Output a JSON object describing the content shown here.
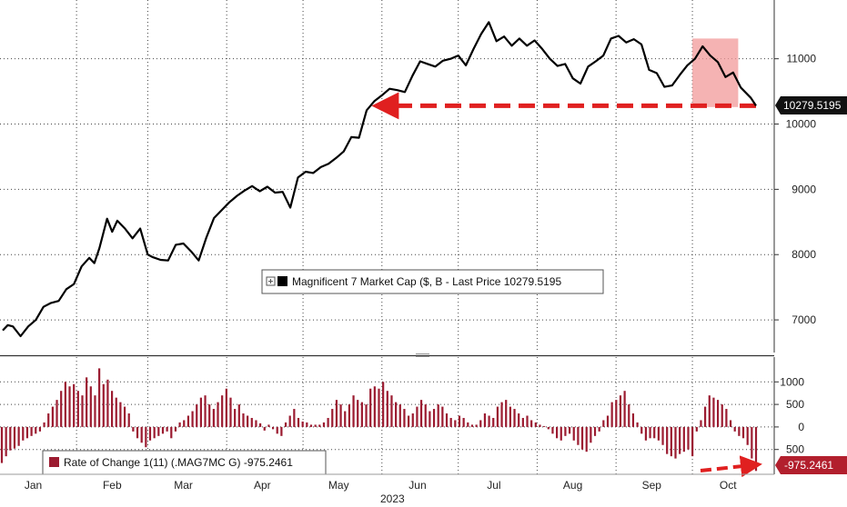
{
  "chart_data": [
    {
      "type": "line",
      "legend": "Magnificent 7 Market Cap ($, B - Last Price 10279.5195",
      "last_value_label": "10279.5195",
      "ylim": [
        6500,
        11900
      ],
      "y_ticks": [
        7000,
        8000,
        9000,
        10000,
        11000
      ],
      "xlim": [
        "2023-01-03",
        "2023-10-26"
      ],
      "series": [
        {
          "values": [
            [
              "2023-01-03",
              6840
            ],
            [
              "2023-01-05",
              6920
            ],
            [
              "2023-01-07",
              6900
            ],
            [
              "2023-01-10",
              6750
            ],
            [
              "2023-01-13",
              6900
            ],
            [
              "2023-01-16",
              7000
            ],
            [
              "2023-01-19",
              7200
            ],
            [
              "2023-01-22",
              7260
            ],
            [
              "2023-01-25",
              7290
            ],
            [
              "2023-01-28",
              7470
            ],
            [
              "2023-01-31",
              7550
            ],
            [
              "2023-02-03",
              7820
            ],
            [
              "2023-02-06",
              7950
            ],
            [
              "2023-02-08",
              7870
            ],
            [
              "2023-02-10",
              8100
            ],
            [
              "2023-02-13",
              8550
            ],
            [
              "2023-02-15",
              8350
            ],
            [
              "2023-02-17",
              8520
            ],
            [
              "2023-02-20",
              8400
            ],
            [
              "2023-02-23",
              8250
            ],
            [
              "2023-02-26",
              8400
            ],
            [
              "2023-03-01",
              8000
            ],
            [
              "2023-03-03",
              7960
            ],
            [
              "2023-03-06",
              7920
            ],
            [
              "2023-03-09",
              7910
            ],
            [
              "2023-03-12",
              8150
            ],
            [
              "2023-03-15",
              8170
            ],
            [
              "2023-03-18",
              8050
            ],
            [
              "2023-03-21",
              7910
            ],
            [
              "2023-03-24",
              8260
            ],
            [
              "2023-03-27",
              8560
            ],
            [
              "2023-03-30",
              8680
            ],
            [
              "2023-04-02",
              8800
            ],
            [
              "2023-04-05",
              8900
            ],
            [
              "2023-04-08",
              8980
            ],
            [
              "2023-04-11",
              9050
            ],
            [
              "2023-04-14",
              8970
            ],
            [
              "2023-04-17",
              9040
            ],
            [
              "2023-04-20",
              8950
            ],
            [
              "2023-04-23",
              8960
            ],
            [
              "2023-04-26",
              8720
            ],
            [
              "2023-04-29",
              9180
            ],
            [
              "2023-05-02",
              9270
            ],
            [
              "2023-05-05",
              9250
            ],
            [
              "2023-05-08",
              9340
            ],
            [
              "2023-05-11",
              9390
            ],
            [
              "2023-05-14",
              9480
            ],
            [
              "2023-05-17",
              9580
            ],
            [
              "2023-05-20",
              9800
            ],
            [
              "2023-05-23",
              9790
            ],
            [
              "2023-05-26",
              10210
            ],
            [
              "2023-05-29",
              10350
            ],
            [
              "2023-06-01",
              10440
            ],
            [
              "2023-06-04",
              10540
            ],
            [
              "2023-06-07",
              10520
            ],
            [
              "2023-06-10",
              10490
            ],
            [
              "2023-06-13",
              10740
            ],
            [
              "2023-06-16",
              10960
            ],
            [
              "2023-06-19",
              10920
            ],
            [
              "2023-06-22",
              10880
            ],
            [
              "2023-06-25",
              10970
            ],
            [
              "2023-06-28",
              11000
            ],
            [
              "2023-07-01",
              11050
            ],
            [
              "2023-07-04",
              10900
            ],
            [
              "2023-07-07",
              11150
            ],
            [
              "2023-07-10",
              11380
            ],
            [
              "2023-07-13",
              11560
            ],
            [
              "2023-07-16",
              11270
            ],
            [
              "2023-07-19",
              11340
            ],
            [
              "2023-07-22",
              11200
            ],
            [
              "2023-07-25",
              11310
            ],
            [
              "2023-07-28",
              11200
            ],
            [
              "2023-07-31",
              11280
            ],
            [
              "2023-08-03",
              11150
            ],
            [
              "2023-08-06",
              11000
            ],
            [
              "2023-08-09",
              10890
            ],
            [
              "2023-08-12",
              10920
            ],
            [
              "2023-08-15",
              10700
            ],
            [
              "2023-08-18",
              10620
            ],
            [
              "2023-08-21",
              10880
            ],
            [
              "2023-08-24",
              10960
            ],
            [
              "2023-08-27",
              11050
            ],
            [
              "2023-08-30",
              11310
            ],
            [
              "2023-09-02",
              11350
            ],
            [
              "2023-09-05",
              11250
            ],
            [
              "2023-09-08",
              11300
            ],
            [
              "2023-09-11",
              11220
            ],
            [
              "2023-09-14",
              10830
            ],
            [
              "2023-09-17",
              10780
            ],
            [
              "2023-09-20",
              10570
            ],
            [
              "2023-09-23",
              10590
            ],
            [
              "2023-09-26",
              10750
            ],
            [
              "2023-09-29",
              10900
            ],
            [
              "2023-10-02",
              11000
            ],
            [
              "2023-10-05",
              11190
            ],
            [
              "2023-10-08",
              11050
            ],
            [
              "2023-10-11",
              10950
            ],
            [
              "2023-10-14",
              10720
            ],
            [
              "2023-10-17",
              10790
            ],
            [
              "2023-10-20",
              10560
            ],
            [
              "2023-10-24",
              10400
            ],
            [
              "2023-10-26",
              10279.5195
            ]
          ]
        }
      ],
      "reference_line": {
        "value": 10279.5195,
        "from": "2023-05-29",
        "to": "2023-10-26",
        "color": "#e02020"
      },
      "highlight_box": {
        "from": "2023-10-01",
        "to": "2023-10-19",
        "y_from": 10260,
        "y_to": 11310,
        "color": "#f29a9a"
      }
    },
    {
      "type": "bar",
      "legend": "Rate of Change 1(11) (.MAG7MC G) -975.2461",
      "last_value_label": "-975.2461",
      "ylim": [
        -1050,
        1550
      ],
      "y_ticks": [
        -500,
        0,
        500,
        1000
      ],
      "y_tick_labels": [
        "500",
        "0",
        "500",
        "1000"
      ],
      "series_color": "#9b1b30",
      "values": [
        -800,
        -650,
        -520,
        -480,
        -420,
        -300,
        -250,
        -200,
        -150,
        -100,
        100,
        300,
        450,
        600,
        800,
        1000,
        900,
        950,
        800,
        700,
        1100,
        900,
        700,
        1300,
        950,
        1050,
        800,
        650,
        550,
        450,
        300,
        -100,
        -250,
        -350,
        -450,
        -300,
        -250,
        -200,
        -150,
        -100,
        -250,
        -100,
        100,
        150,
        250,
        350,
        500,
        650,
        700,
        500,
        400,
        550,
        700,
        850,
        650,
        400,
        500,
        300,
        250,
        200,
        150,
        80,
        -80,
        50,
        -50,
        -150,
        -200,
        100,
        250,
        400,
        200,
        120,
        100,
        50,
        50,
        50,
        100,
        200,
        400,
        600,
        500,
        350,
        500,
        700,
        600,
        550,
        500,
        850,
        900,
        850,
        1000,
        800,
        700,
        550,
        500,
        400,
        250,
        300,
        450,
        600,
        500,
        350,
        400,
        500,
        450,
        300,
        200,
        150,
        250,
        200,
        100,
        50,
        50,
        150,
        300,
        250,
        200,
        450,
        550,
        600,
        450,
        400,
        300,
        200,
        250,
        150,
        100,
        50,
        20,
        -50,
        -150,
        -250,
        -300,
        -200,
        -150,
        -300,
        -400,
        -500,
        -550,
        -350,
        -200,
        -100,
        150,
        250,
        550,
        600,
        700,
        800,
        500,
        300,
        100,
        -150,
        -300,
        -250,
        -250,
        -300,
        -400,
        -600,
        -650,
        -700,
        -600,
        -550,
        -500,
        -650,
        -100,
        150,
        450,
        700,
        650,
        600,
        500,
        400,
        150,
        -100,
        -200,
        -250,
        -400,
        -700,
        -975.2461
      ]
    }
  ],
  "x_axis": {
    "month_labels": [
      "Jan",
      "Feb",
      "Mar",
      "Apr",
      "May",
      "Jun",
      "Jul",
      "Aug",
      "Sep",
      "Oct"
    ],
    "year_label": "2023"
  },
  "colors": {
    "line": "#000000",
    "arrow": "#e02020",
    "bar": "#9b1b30",
    "price_tag": "#111111",
    "roc_tag": "#b21f2d"
  }
}
